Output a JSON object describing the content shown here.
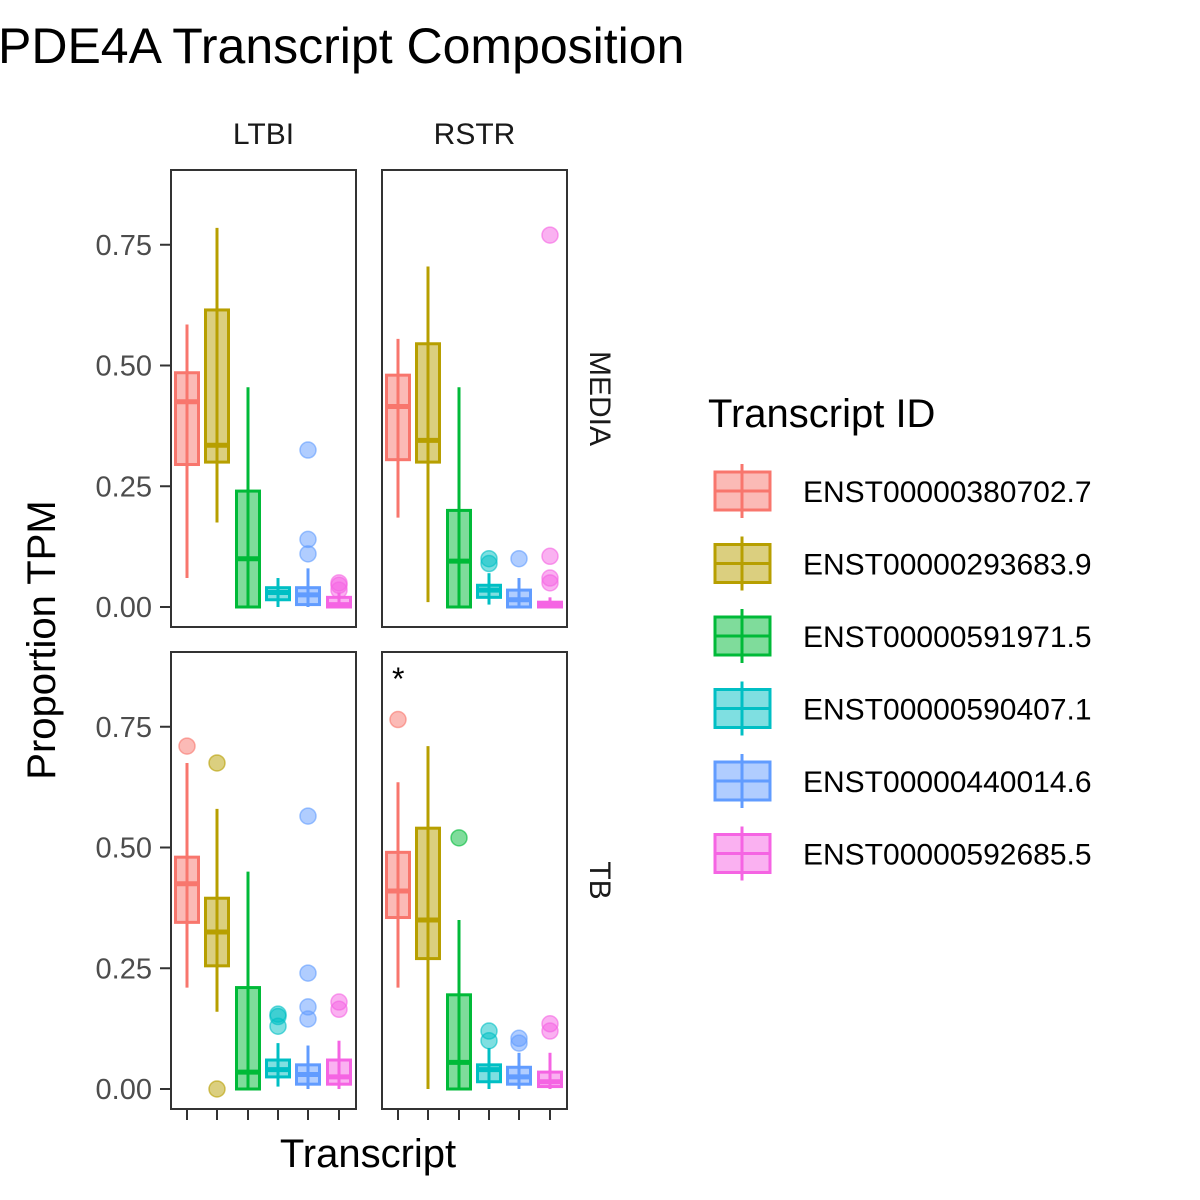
{
  "chart_data": {
    "type": "box",
    "title": "PDE4A Transcript Composition",
    "xlabel": "Transcript",
    "ylabel": "Proportion TPM",
    "ylim": [
      -0.04,
      0.9
    ],
    "yticks": [
      0.0,
      0.25,
      0.5,
      0.75
    ],
    "ytick_labels": [
      "0.00",
      "0.25",
      "0.50",
      "0.75"
    ],
    "grid": false,
    "legend": {
      "title": "Transcript ID",
      "placement": "right"
    },
    "col_facets": [
      "LTBI",
      "RSTR"
    ],
    "row_facets": [
      "MEDIA",
      "TB"
    ],
    "series": [
      {
        "name": "ENST00000380702.7",
        "color": "#F8766D"
      },
      {
        "name": "ENST00000293683.9",
        "color": "#B79F00"
      },
      {
        "name": "ENST00000591971.5",
        "color": "#00BA38"
      },
      {
        "name": "ENST00000590407.1",
        "color": "#00BFC4"
      },
      {
        "name": "ENST00000440014.6",
        "color": "#619CFF"
      },
      {
        "name": "ENST00000592685.5",
        "color": "#F564E3"
      }
    ],
    "panels": [
      {
        "row": "MEDIA",
        "col": "LTBI",
        "annotation": "",
        "boxes": [
          {
            "q1": 0.295,
            "median": 0.425,
            "q3": 0.485,
            "lower": 0.06,
            "upper": 0.585,
            "outliers": []
          },
          {
            "q1": 0.3,
            "median": 0.335,
            "q3": 0.615,
            "lower": 0.175,
            "upper": 0.785,
            "outliers": []
          },
          {
            "q1": 0.0,
            "median": 0.1,
            "q3": 0.24,
            "lower": 0.0,
            "upper": 0.455,
            "outliers": []
          },
          {
            "q1": 0.015,
            "median": 0.03,
            "q3": 0.04,
            "lower": 0.0,
            "upper": 0.06,
            "outliers": []
          },
          {
            "q1": 0.005,
            "median": 0.025,
            "q3": 0.04,
            "lower": 0.0,
            "upper": 0.08,
            "outliers": [
              0.11,
              0.14,
              0.325
            ]
          },
          {
            "q1": 0.0,
            "median": 0.005,
            "q3": 0.02,
            "lower": 0.0,
            "upper": 0.03,
            "outliers": [
              0.035,
              0.045,
              0.05
            ]
          }
        ]
      },
      {
        "row": "MEDIA",
        "col": "RSTR",
        "annotation": "",
        "boxes": [
          {
            "q1": 0.305,
            "median": 0.415,
            "q3": 0.48,
            "lower": 0.185,
            "upper": 0.555,
            "outliers": []
          },
          {
            "q1": 0.3,
            "median": 0.345,
            "q3": 0.545,
            "lower": 0.01,
            "upper": 0.705,
            "outliers": []
          },
          {
            "q1": 0.0,
            "median": 0.095,
            "q3": 0.2,
            "lower": 0.0,
            "upper": 0.455,
            "outliers": []
          },
          {
            "q1": 0.02,
            "median": 0.035,
            "q3": 0.045,
            "lower": 0.005,
            "upper": 0.07,
            "outliers": [
              0.09,
              0.1
            ]
          },
          {
            "q1": 0.0,
            "median": 0.015,
            "q3": 0.035,
            "lower": 0.0,
            "upper": 0.06,
            "outliers": [
              0.1
            ]
          },
          {
            "q1": 0.0,
            "median": 0.005,
            "q3": 0.01,
            "lower": 0.0,
            "upper": 0.02,
            "outliers": [
              0.05,
              0.06,
              0.105,
              0.77
            ]
          }
        ]
      },
      {
        "row": "TB",
        "col": "LTBI",
        "annotation": "",
        "boxes": [
          {
            "q1": 0.345,
            "median": 0.425,
            "q3": 0.48,
            "lower": 0.21,
            "upper": 0.675,
            "outliers": [
              0.71
            ]
          },
          {
            "q1": 0.255,
            "median": 0.325,
            "q3": 0.395,
            "lower": 0.16,
            "upper": 0.58,
            "outliers": [
              0.0,
              0.675
            ]
          },
          {
            "q1": 0.0,
            "median": 0.035,
            "q3": 0.21,
            "lower": 0.0,
            "upper": 0.45,
            "outliers": []
          },
          {
            "q1": 0.025,
            "median": 0.04,
            "q3": 0.06,
            "lower": 0.005,
            "upper": 0.095,
            "outliers": [
              0.13,
              0.15,
              0.155
            ]
          },
          {
            "q1": 0.01,
            "median": 0.03,
            "q3": 0.05,
            "lower": 0.0,
            "upper": 0.09,
            "outliers": [
              0.145,
              0.17,
              0.24,
              0.565
            ]
          },
          {
            "q1": 0.01,
            "median": 0.025,
            "q3": 0.06,
            "lower": 0.0,
            "upper": 0.1,
            "outliers": [
              0.165,
              0.18
            ]
          }
        ]
      },
      {
        "row": "TB",
        "col": "RSTR",
        "annotation": "*",
        "boxes": [
          {
            "q1": 0.355,
            "median": 0.41,
            "q3": 0.49,
            "lower": 0.21,
            "upper": 0.635,
            "outliers": [
              0.765
            ]
          },
          {
            "q1": 0.27,
            "median": 0.35,
            "q3": 0.54,
            "lower": 0.0,
            "upper": 0.71,
            "outliers": []
          },
          {
            "q1": 0.0,
            "median": 0.055,
            "q3": 0.195,
            "lower": 0.0,
            "upper": 0.35,
            "outliers": [
              0.52
            ]
          },
          {
            "q1": 0.015,
            "median": 0.04,
            "q3": 0.05,
            "lower": 0.0,
            "upper": 0.085,
            "outliers": [
              0.1,
              0.12
            ]
          },
          {
            "q1": 0.01,
            "median": 0.025,
            "q3": 0.045,
            "lower": 0.0,
            "upper": 0.075,
            "outliers": [
              0.095,
              0.105
            ]
          },
          {
            "q1": 0.005,
            "median": 0.015,
            "q3": 0.035,
            "lower": 0.0,
            "upper": 0.075,
            "outliers": [
              0.12,
              0.135
            ]
          }
        ]
      }
    ]
  }
}
